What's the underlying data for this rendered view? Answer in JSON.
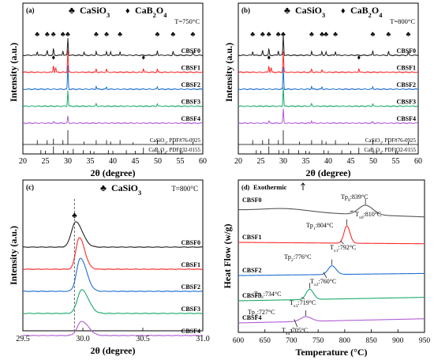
{
  "chart_data": [
    {
      "type": "line",
      "panel_label": "(a)",
      "legend": [
        {
          "marker": "♣",
          "label": "CaSiO",
          "sub": "3"
        },
        {
          "marker": "♦",
          "label": "CaB",
          "sub": "2",
          "label2": "O",
          "sub2": "4"
        }
      ],
      "condition": "T=750°C",
      "xlabel": "2θ (degree)",
      "ylabel": "Intensity (a.u.)",
      "xlim": [
        20,
        60
      ],
      "xticks": [
        "20",
        "25",
        "30",
        "35",
        "40",
        "45",
        "50",
        "55",
        "60"
      ],
      "series": [
        {
          "name": "CBSF0",
          "color": "#222222",
          "peaks": [
            [
              23.2,
              5
            ],
            [
              25.4,
              6
            ],
            [
              26.8,
              8
            ],
            [
              28.9,
              6
            ],
            [
              30.0,
              22
            ],
            [
              33.6,
              4
            ],
            [
              36.3,
              5
            ],
            [
              38.6,
              5
            ],
            [
              39.5,
              4
            ],
            [
              41.6,
              5
            ],
            [
              49.9,
              6
            ],
            [
              53.4,
              5
            ],
            [
              57.8,
              4
            ]
          ]
        },
        {
          "name": "CBSF1",
          "color": "#ff2a2a",
          "peaks": [
            [
              26.8,
              9
            ],
            [
              27.3,
              6
            ],
            [
              30.0,
              28
            ],
            [
              36.3,
              4
            ],
            [
              38.6,
              4
            ],
            [
              46.8,
              5
            ],
            [
              49.9,
              4
            ]
          ]
        },
        {
          "name": "CBSF2",
          "color": "#1f6fd1",
          "peaks": [
            [
              30.0,
              30
            ],
            [
              36.3,
              4
            ],
            [
              38.6,
              3
            ],
            [
              49.9,
              3
            ]
          ]
        },
        {
          "name": "CBSF3",
          "color": "#1aaa6a",
          "peaks": [
            [
              30.0,
              20
            ],
            [
              36.3,
              3
            ],
            [
              49.9,
              3
            ]
          ]
        },
        {
          "name": "CBSF4",
          "color": "#b05bd8",
          "peaks": [
            [
              30.0,
              9
            ],
            [
              26.8,
              2
            ]
          ]
        }
      ],
      "symbols": {
        "club": [
          23.2,
          25.4,
          26.8,
          28.9,
          30.0,
          36.3,
          38.6,
          41.6,
          49.9,
          53.4,
          57.8
        ],
        "diamond": [
          26.8,
          46.8
        ]
      },
      "references": [
        {
          "label": "CaSiO",
          "sub": "3",
          "rest": ", PDF#76-0925",
          "lines": [
            [
              23.2,
              0.3
            ],
            [
              25.4,
              0.3
            ],
            [
              26.8,
              0.4
            ],
            [
              28.9,
              0.3
            ],
            [
              30.0,
              1.0
            ],
            [
              33.6,
              0.2
            ],
            [
              36.3,
              0.3
            ],
            [
              38.6,
              0.3
            ],
            [
              39.5,
              0.2
            ],
            [
              41.6,
              0.3
            ],
            [
              44.5,
              0.15
            ],
            [
              49.9,
              0.3
            ],
            [
              53.4,
              0.25
            ],
            [
              57.8,
              0.2
            ]
          ]
        },
        {
          "label": "CaB",
          "sub": "2",
          "rest": "O",
          "sub2": "4",
          "rest2": ", PDF#32-0155",
          "lines": [
            [
              24.0,
              0.3
            ],
            [
              26.8,
              0.6
            ],
            [
              29.0,
              0.3
            ],
            [
              31.2,
              0.4
            ],
            [
              33.4,
              0.3
            ],
            [
              35.8,
              0.2
            ],
            [
              39.0,
              0.3
            ],
            [
              43.0,
              0.3
            ],
            [
              46.8,
              0.5
            ],
            [
              50.8,
              0.3
            ],
            [
              55.4,
              0.2
            ]
          ]
        }
      ]
    },
    {
      "type": "line",
      "panel_label": "(b)",
      "legend": [
        {
          "marker": "♣",
          "label": "CaSiO",
          "sub": "3"
        },
        {
          "marker": "♦",
          "label": "CaB",
          "sub": "2",
          "label2": "O",
          "sub2": "4"
        }
      ],
      "condition": "T=800°C",
      "xlabel": "2θ (degree)",
      "ylabel": "Intensity (a.u.)",
      "xlim": [
        20,
        60
      ],
      "xticks": [
        "20",
        "25",
        "30",
        "35",
        "40",
        "45",
        "50",
        "55",
        "60"
      ],
      "series": [
        {
          "name": "CBSF0",
          "color": "#222222",
          "peaks": [
            [
              23.2,
              5
            ],
            [
              25.4,
              6
            ],
            [
              26.8,
              8
            ],
            [
              28.9,
              6
            ],
            [
              30.0,
              26
            ],
            [
              36.3,
              5
            ],
            [
              38.6,
              5
            ],
            [
              39.5,
              4
            ],
            [
              41.6,
              5
            ],
            [
              49.9,
              6
            ],
            [
              53.4,
              5
            ],
            [
              57.8,
              4
            ]
          ]
        },
        {
          "name": "CBSF1",
          "color": "#ff2a2a",
          "peaks": [
            [
              26.8,
              8
            ],
            [
              27.3,
              6
            ],
            [
              30.0,
              26
            ],
            [
              36.3,
              4
            ],
            [
              38.6,
              3
            ],
            [
              46.8,
              5
            ]
          ]
        },
        {
          "name": "CBSF2",
          "color": "#1f6fd1",
          "peaks": [
            [
              30.0,
              28
            ],
            [
              36.3,
              4
            ],
            [
              38.6,
              3
            ],
            [
              49.9,
              3
            ]
          ]
        },
        {
          "name": "CBSF3",
          "color": "#1aaa6a",
          "peaks": [
            [
              30.0,
              24
            ],
            [
              36.3,
              3
            ],
            [
              49.9,
              3
            ]
          ]
        },
        {
          "name": "CBSF4",
          "color": "#b05bd8",
          "peaks": [
            [
              30.0,
              18
            ],
            [
              26.8,
              3
            ],
            [
              36.3,
              3
            ],
            [
              49.9,
              2
            ]
          ]
        }
      ],
      "symbols": {
        "club": [
          23.2,
          25.4,
          26.8,
          28.9,
          30.0,
          36.3,
          38.6,
          39.5,
          41.6,
          49.9,
          53.4,
          57.8
        ],
        "diamond": [
          26.8,
          46.8
        ]
      },
      "references": [
        {
          "label": "CaSiO",
          "sub": "3",
          "rest": ", PDF#76-0925",
          "lines": [
            [
              23.2,
              0.3
            ],
            [
              25.4,
              0.3
            ],
            [
              26.8,
              0.4
            ],
            [
              28.9,
              0.3
            ],
            [
              30.0,
              1.0
            ],
            [
              33.6,
              0.2
            ],
            [
              36.3,
              0.3
            ],
            [
              38.6,
              0.3
            ],
            [
              39.5,
              0.2
            ],
            [
              41.6,
              0.3
            ],
            [
              44.5,
              0.15
            ],
            [
              49.9,
              0.3
            ],
            [
              53.4,
              0.25
            ],
            [
              57.8,
              0.2
            ]
          ]
        },
        {
          "label": "CaB",
          "sub": "2",
          "rest": "O",
          "sub2": "4",
          "rest2": ", PDF#32-0155",
          "lines": [
            [
              24.0,
              0.3
            ],
            [
              26.8,
              0.6
            ],
            [
              29.0,
              0.3
            ],
            [
              31.2,
              0.4
            ],
            [
              33.4,
              0.3
            ],
            [
              35.8,
              0.2
            ],
            [
              39.0,
              0.3
            ],
            [
              43.0,
              0.3
            ],
            [
              46.8,
              0.5
            ],
            [
              50.8,
              0.3
            ],
            [
              55.4,
              0.2
            ]
          ]
        }
      ]
    },
    {
      "type": "line",
      "panel_label": "(c)",
      "legend": [
        {
          "marker": "♣",
          "label": "CaSiO",
          "sub": "3"
        }
      ],
      "condition": "T=800°C",
      "xlabel": "2θ (degree)",
      "ylabel": "Intensity (a.u.)",
      "xlim": [
        29.5,
        31.0
      ],
      "xticks": [
        "29.5",
        "30.0",
        "30.5",
        "31.0"
      ],
      "reference_line_x": 29.93,
      "series": [
        {
          "name": "CBSF0",
          "color": "#222222",
          "peak_x": 29.94,
          "height": 32,
          "width": 0.05
        },
        {
          "name": "CBSF1",
          "color": "#ff2a2a",
          "peak_x": 29.97,
          "height": 40,
          "width": 0.04
        },
        {
          "name": "CBSF2",
          "color": "#1f6fd1",
          "peak_x": 29.98,
          "height": 42,
          "width": 0.045
        },
        {
          "name": "CBSF3",
          "color": "#1aaa6a",
          "peak_x": 29.99,
          "height": 30,
          "width": 0.05
        },
        {
          "name": "CBSF4",
          "color": "#b05bd8",
          "peak_x": 29.99,
          "height": 18,
          "width": 0.05
        }
      ]
    },
    {
      "type": "line",
      "panel_label": "(d)",
      "annotation_top": "Exothermic",
      "xlabel": "Temperature (°C)",
      "ylabel": "Heat Flow   (w/g)",
      "xlim": [
        600,
        950
      ],
      "xticks": [
        "600",
        "650",
        "700",
        "750",
        "800",
        "850",
        "900",
        "950"
      ],
      "series": [
        {
          "name": "CBSF0",
          "color": "#555555",
          "tp": 839,
          "tx": 810,
          "tp_label": "Tp",
          "tp_sub": "0",
          "tp_value": ":839°C",
          "tx_label": "T",
          "tx_sub": "x0",
          "tx_value": ":810°C",
          "peak_h": 12
        },
        {
          "name": "CBSF1",
          "color": "#ff2a2a",
          "tp": 804,
          "tx": 792,
          "tp_label": "Tp",
          "tp_sub": "1",
          "tp_value": ":804°C",
          "tx_label": "T",
          "tx_sub": "x1",
          "tx_value": ":792°C",
          "peak_h": 22
        },
        {
          "name": "CBSF2",
          "color": "#1f6fd1",
          "tp": 776,
          "tx": 760,
          "tp_label": "Tp",
          "tp_sub": "2",
          "tp_value": ":776°C",
          "tx_label": "T",
          "tx_sub": "x2",
          "tx_value": ":760°C",
          "peak_h": 11
        },
        {
          "name": "CBSF3",
          "color": "#1aaa6a",
          "tp": 734,
          "tx": 719,
          "tp_label": "Tp",
          "tp_sub": "3",
          "tp_value": ":734°C",
          "tx_label": "T",
          "tx_sub": "x3",
          "tx_value": ":719°C",
          "peak_h": 13
        },
        {
          "name": "CBSF4",
          "color": "#b05bd8",
          "tp": 727,
          "tx": 705,
          "tp_label": "Tp",
          "tp_sub": "4",
          "tp_value": ":727°C",
          "tx_label": "T",
          "tx_sub": "x4",
          "tx_value": ":705°C",
          "peak_h": 6
        }
      ]
    }
  ]
}
